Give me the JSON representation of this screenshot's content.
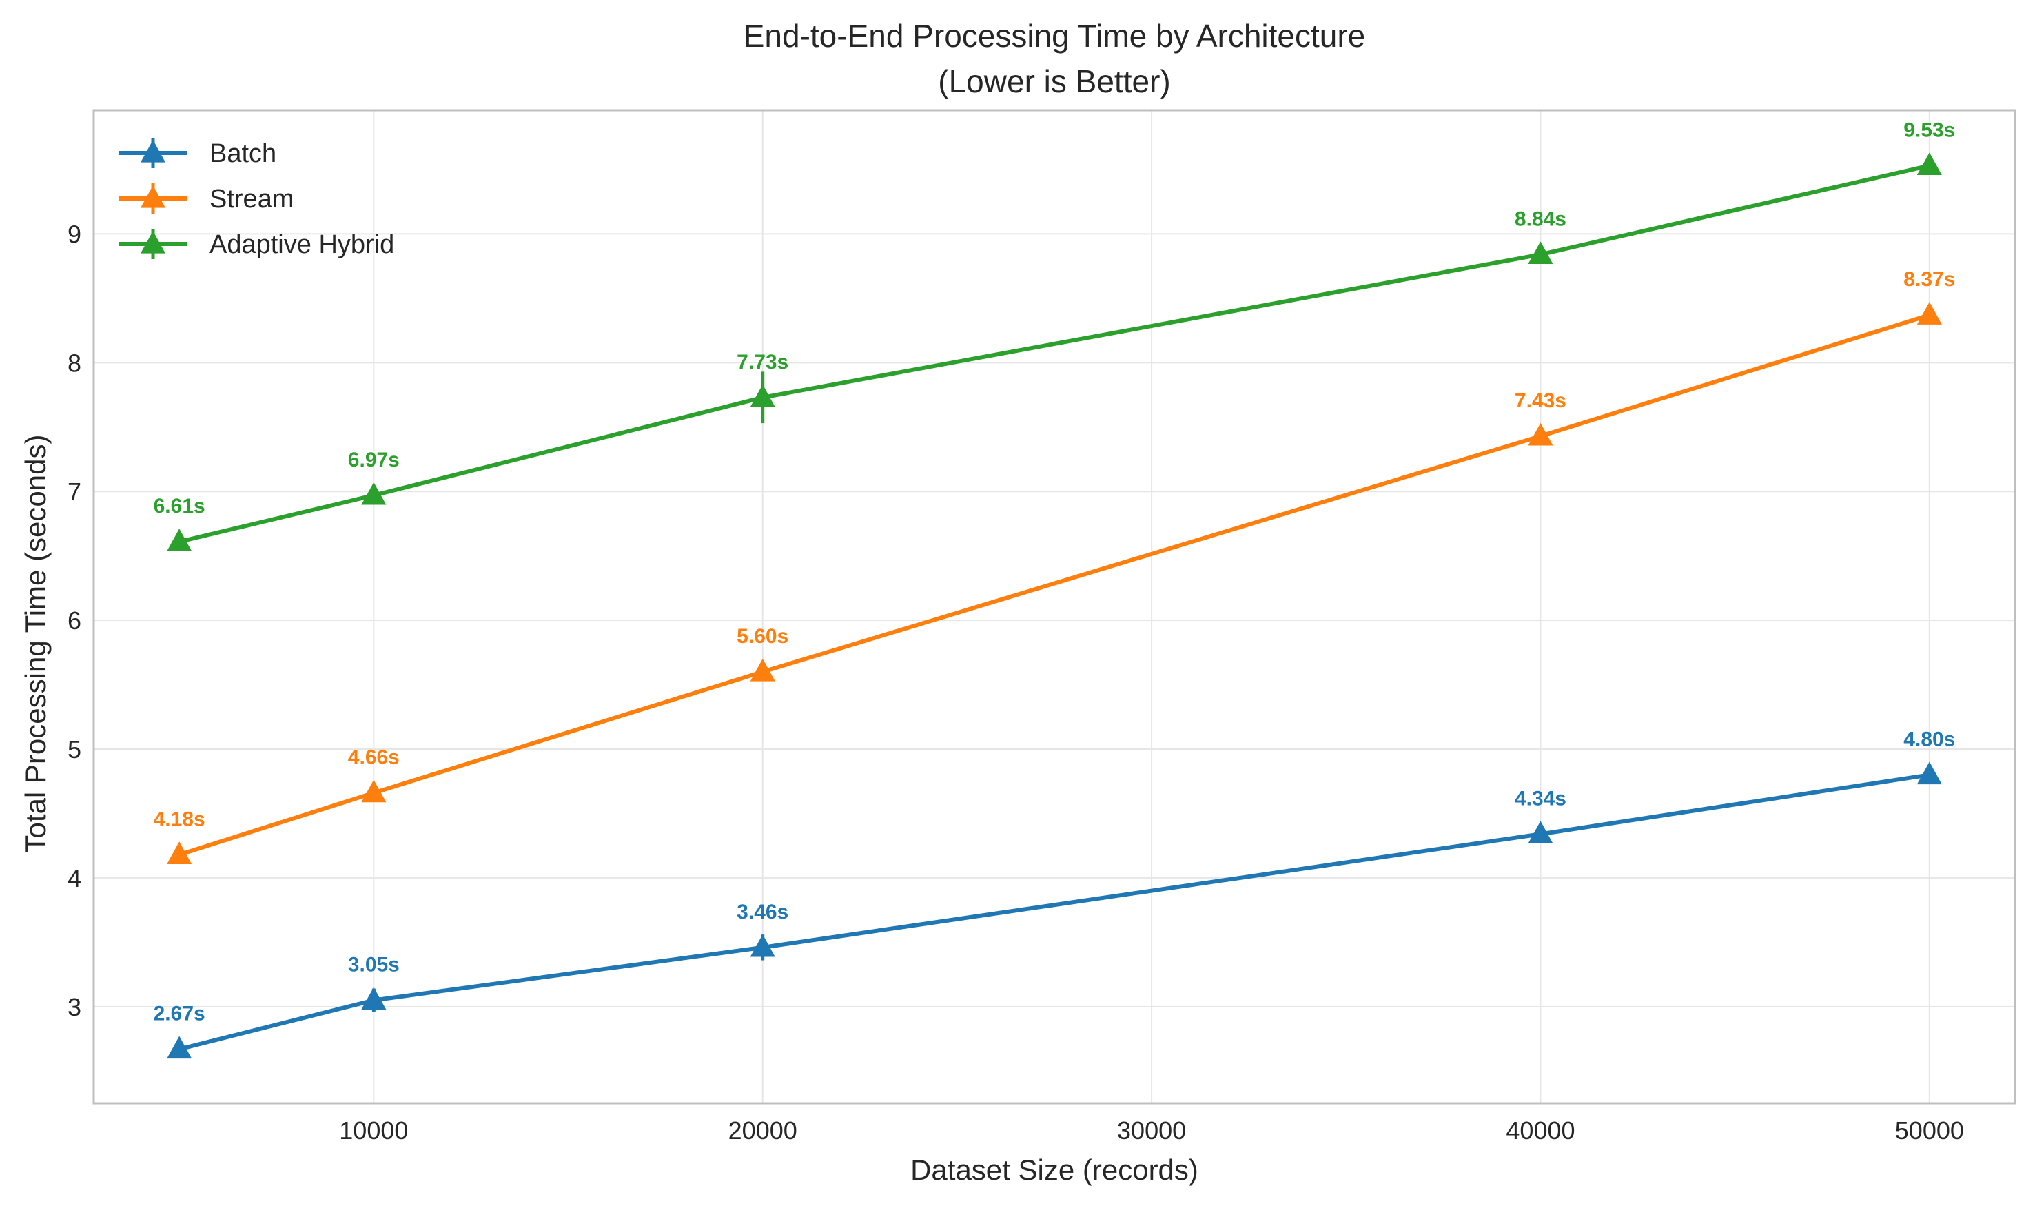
{
  "chart_data": {
    "type": "line",
    "title": "End-to-End Processing Time by Architecture",
    "subtitle": "(Lower is Better)",
    "xlabel": "Dataset Size (records)",
    "ylabel": "Total Processing Time (seconds)",
    "x": [
      5000,
      10000,
      20000,
      40000,
      50000
    ],
    "xticks": [
      10000,
      20000,
      30000,
      40000,
      50000
    ],
    "yticks": [
      3,
      4,
      5,
      6,
      7,
      8,
      9
    ],
    "xlim": [
      2800,
      52200
    ],
    "ylim": [
      2.25,
      9.96
    ],
    "grid": true,
    "legend_position": "top-left",
    "marker": "triangle",
    "series": [
      {
        "name": "Batch",
        "color": "#1f77b4",
        "values": [
          2.67,
          3.05,
          3.46,
          4.34,
          4.8
        ],
        "labels": [
          "2.67s",
          "3.05s",
          "3.46s",
          "4.34s",
          "4.80s"
        ],
        "errors": [
          0.03,
          0.09,
          0.1,
          0.05,
          0.04
        ]
      },
      {
        "name": "Stream",
        "color": "#ff7f0e",
        "values": [
          4.18,
          4.66,
          5.6,
          7.43,
          8.37
        ],
        "labels": [
          "4.18s",
          "4.66s",
          "5.60s",
          "7.43s",
          "8.37s"
        ],
        "errors": [
          0.03,
          0.04,
          0.05,
          0.05,
          0.05
        ]
      },
      {
        "name": "Adaptive Hybrid",
        "color": "#2ca02c",
        "values": [
          6.61,
          6.97,
          7.73,
          8.84,
          9.53
        ],
        "labels": [
          "6.61s",
          "6.97s",
          "7.73s",
          "8.84s",
          "9.53s"
        ],
        "errors": [
          0.05,
          0.05,
          0.2,
          0.04,
          0.05
        ]
      }
    ]
  }
}
